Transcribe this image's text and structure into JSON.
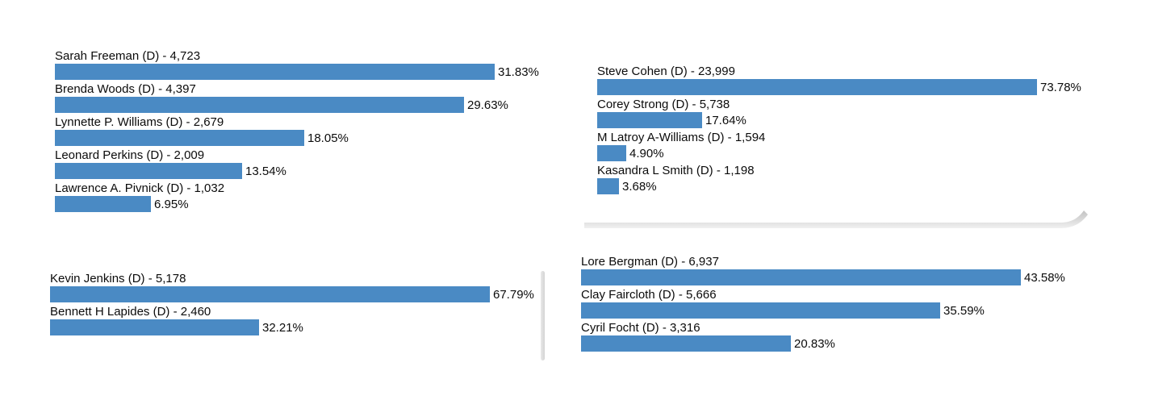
{
  "style": {
    "bar_color": "#4a8ac4",
    "text_color": "#0b0b0b",
    "scrollbar_color": "#dcdcdc",
    "shadow_color_dark": "#c6c6c6",
    "shadow_color_light": "#f0f0f0",
    "background": "#ffffff"
  },
  "chart_data": [
    {
      "type": "bar",
      "orientation": "horizontal",
      "group": "top-left",
      "title": "",
      "xlabel": "",
      "ylabel": "",
      "grid": false,
      "legend": false,
      "categories": [
        "Sarah Freeman (D) - 4,723",
        "Brenda Woods (D) - 4,397",
        "Lynnette P. Williams (D) - 2,679",
        "Leonard Perkins (D) - 2,009",
        "Lawrence A. Pivnick (D) - 1,032"
      ],
      "values": [
        31.83,
        29.63,
        18.05,
        13.54,
        6.95
      ],
      "value_labels": [
        "31.83%",
        "29.63%",
        "18.05%",
        "13.54%",
        "6.95%"
      ],
      "votes": [
        4723,
        4397,
        2679,
        2009,
        1032
      ],
      "party": [
        "D",
        "D",
        "D",
        "D",
        "D"
      ],
      "xlim": [
        0,
        31.83
      ]
    },
    {
      "type": "bar",
      "orientation": "horizontal",
      "group": "top-right",
      "title": "",
      "xlabel": "",
      "ylabel": "",
      "grid": false,
      "legend": false,
      "categories": [
        "Steve Cohen (D) - 23,999",
        "Corey Strong (D) - 5,738",
        "M Latroy A-Williams (D) - 1,594",
        "Kasandra L Smith (D) - 1,198"
      ],
      "values": [
        73.78,
        17.64,
        4.9,
        3.68
      ],
      "value_labels": [
        "73.78%",
        "17.64%",
        "4.90%",
        "3.68%"
      ],
      "votes": [
        23999,
        5738,
        1594,
        1198
      ],
      "party": [
        "D",
        "D",
        "D",
        "D"
      ],
      "xlim": [
        0,
        73.78
      ]
    },
    {
      "type": "bar",
      "orientation": "horizontal",
      "group": "bottom-left",
      "title": "",
      "xlabel": "",
      "ylabel": "",
      "grid": false,
      "legend": false,
      "categories": [
        "Kevin Jenkins (D) - 5,178",
        "Bennett H Lapides (D) - 2,460"
      ],
      "values": [
        67.79,
        32.21
      ],
      "value_labels": [
        "67.79%",
        "32.21%"
      ],
      "votes": [
        5178,
        2460
      ],
      "party": [
        "D",
        "D"
      ],
      "xlim": [
        0,
        67.79
      ]
    },
    {
      "type": "bar",
      "orientation": "horizontal",
      "group": "bottom-right",
      "title": "",
      "xlabel": "",
      "ylabel": "",
      "grid": false,
      "legend": false,
      "categories": [
        "Lore Bergman (D) - 6,937",
        "Clay Faircloth (D) - 5,666",
        "Cyril Focht (D) - 3,316"
      ],
      "values": [
        43.58,
        35.59,
        20.83
      ],
      "value_labels": [
        "43.58%",
        "35.59%",
        "20.83%"
      ],
      "votes": [
        6937,
        5666,
        3316
      ],
      "party": [
        "D",
        "D",
        "D"
      ],
      "xlim": [
        0,
        43.58
      ]
    }
  ]
}
